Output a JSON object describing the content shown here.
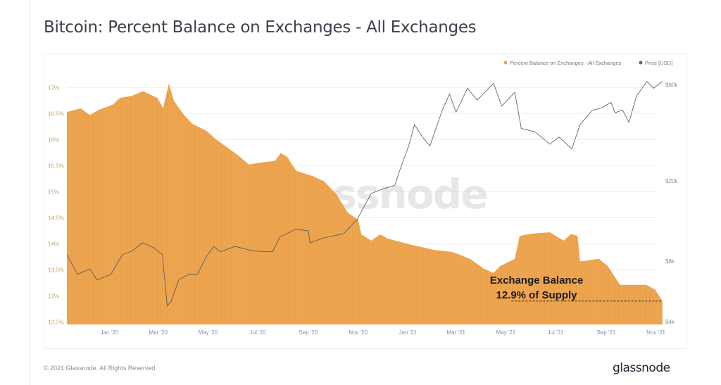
{
  "title": "Bitcoin: Percent Balance on Exchanges - All Exchanges",
  "footer": "© 2021 Glassnode. All Rights Reserved.",
  "logo": "glassnode",
  "watermark": "glassnode",
  "chart_data": {
    "type": "area",
    "title": "Bitcoin: Percent Balance on Exchanges - All Exchanges",
    "legend_position": "top-right",
    "grid": true,
    "xlim": [
      "2019-11-10",
      "2021-11-10"
    ],
    "x_ticks": [
      {
        "date": "2020-01-01",
        "label": "Jan '20"
      },
      {
        "date": "2020-03-01",
        "label": "Mar '20"
      },
      {
        "date": "2020-05-01",
        "label": "May '20"
      },
      {
        "date": "2020-07-01",
        "label": "Jul '20"
      },
      {
        "date": "2020-09-01",
        "label": "Sep '20"
      },
      {
        "date": "2020-11-01",
        "label": "Nov '20"
      },
      {
        "date": "2021-01-01",
        "label": "Jan '21"
      },
      {
        "date": "2021-03-01",
        "label": "Mar '21"
      },
      {
        "date": "2021-05-01",
        "label": "May '21"
      },
      {
        "date": "2021-07-01",
        "label": "Jul '21"
      },
      {
        "date": "2021-09-01",
        "label": "Sep '21"
      },
      {
        "date": "2021-11-01",
        "label": "Nov '21"
      }
    ],
    "y_left": {
      "scale": "linear",
      "ylim": [
        12.45,
        17.45
      ],
      "ticks": [
        {
          "value": 12.5,
          "label": "12.5%"
        },
        {
          "value": 13,
          "label": "13%"
        },
        {
          "value": 13.5,
          "label": "13.5%"
        },
        {
          "value": 14,
          "label": "14%"
        },
        {
          "value": 14.5,
          "label": "14.5%"
        },
        {
          "value": 15,
          "label": "15%"
        },
        {
          "value": 15.5,
          "label": "15.5%"
        },
        {
          "value": 16,
          "label": "16%"
        },
        {
          "value": 16.5,
          "label": "16.5%"
        },
        {
          "value": 17,
          "label": "17%"
        }
      ]
    },
    "y_right": {
      "scale": "log",
      "ylim": [
        3870,
        76000
      ],
      "ticks": [
        {
          "value": 4000,
          "label": "$4k"
        },
        {
          "value": 8000,
          "label": "$8k"
        },
        {
          "value": 20000,
          "label": "$20k"
        },
        {
          "value": 60000,
          "label": "$60k"
        }
      ]
    },
    "series": [
      {
        "name": "Percent Balance on Exchanges - All Exchanges",
        "axis": "left",
        "color": "#eda550",
        "type": "area",
        "points": [
          [
            "2019-11-10",
            16.53
          ],
          [
            "2019-11-27",
            16.6
          ],
          [
            "2019-12-08",
            16.47
          ],
          [
            "2019-12-19",
            16.57
          ],
          [
            "2020-01-05",
            16.67
          ],
          [
            "2020-01-14",
            16.8
          ],
          [
            "2020-01-29",
            16.84
          ],
          [
            "2020-02-11",
            16.93
          ],
          [
            "2020-02-29",
            16.8
          ],
          [
            "2020-03-07",
            16.6
          ],
          [
            "2020-03-14",
            17.08
          ],
          [
            "2020-03-20",
            16.75
          ],
          [
            "2020-04-01",
            16.48
          ],
          [
            "2020-04-12",
            16.3
          ],
          [
            "2020-04-29",
            16.17
          ],
          [
            "2020-05-11",
            16.0
          ],
          [
            "2020-05-29",
            15.8
          ],
          [
            "2020-06-09",
            15.67
          ],
          [
            "2020-06-20",
            15.52
          ],
          [
            "2020-07-05",
            15.56
          ],
          [
            "2020-07-22",
            15.59
          ],
          [
            "2020-07-29",
            15.74
          ],
          [
            "2020-08-06",
            15.67
          ],
          [
            "2020-08-17",
            15.4
          ],
          [
            "2020-09-06",
            15.3
          ],
          [
            "2020-09-20",
            15.2
          ],
          [
            "2020-10-05",
            14.96
          ],
          [
            "2020-10-19",
            14.6
          ],
          [
            "2020-11-01",
            14.46
          ],
          [
            "2020-11-05",
            14.18
          ],
          [
            "2020-11-17",
            14.06
          ],
          [
            "2020-11-28",
            14.18
          ],
          [
            "2020-12-07",
            14.1
          ],
          [
            "2021-01-05",
            13.98
          ],
          [
            "2021-02-03",
            13.88
          ],
          [
            "2021-02-25",
            13.84
          ],
          [
            "2021-03-18",
            13.71
          ],
          [
            "2021-04-04",
            13.52
          ],
          [
            "2021-04-16",
            13.44
          ],
          [
            "2021-04-24",
            13.57
          ],
          [
            "2021-05-12",
            13.71
          ],
          [
            "2021-05-18",
            14.15
          ],
          [
            "2021-05-31",
            14.19
          ],
          [
            "2021-06-24",
            14.22
          ],
          [
            "2021-07-11",
            14.06
          ],
          [
            "2021-07-20",
            14.19
          ],
          [
            "2021-07-28",
            14.15
          ],
          [
            "2021-07-31",
            13.66
          ],
          [
            "2021-08-23",
            13.71
          ],
          [
            "2021-09-03",
            13.57
          ],
          [
            "2021-09-18",
            13.21
          ],
          [
            "2021-10-20",
            13.21
          ],
          [
            "2021-10-31",
            13.12
          ],
          [
            "2021-11-09",
            12.9
          ]
        ]
      },
      {
        "name": "Price [USD]",
        "axis": "right",
        "color": "#555555",
        "type": "line",
        "points": [
          [
            "2019-11-10",
            8600
          ],
          [
            "2019-11-23",
            6870
          ],
          [
            "2019-12-08",
            7290
          ],
          [
            "2019-12-17",
            6430
          ],
          [
            "2020-01-03",
            6870
          ],
          [
            "2020-01-17",
            8600
          ],
          [
            "2020-01-29",
            8960
          ],
          [
            "2020-02-11",
            9850
          ],
          [
            "2020-02-24",
            9330
          ],
          [
            "2020-03-06",
            8600
          ],
          [
            "2020-03-12",
            4780
          ],
          [
            "2020-03-17",
            5060
          ],
          [
            "2020-03-26",
            6430
          ],
          [
            "2020-04-07",
            6870
          ],
          [
            "2020-04-18",
            6870
          ],
          [
            "2020-04-29",
            8400
          ],
          [
            "2020-05-08",
            9450
          ],
          [
            "2020-05-16",
            8880
          ],
          [
            "2020-06-03",
            9450
          ],
          [
            "2020-06-26",
            8960
          ],
          [
            "2020-07-19",
            8880
          ],
          [
            "2020-07-28",
            10520
          ],
          [
            "2020-08-17",
            11500
          ],
          [
            "2020-09-01",
            11280
          ],
          [
            "2020-09-03",
            9850
          ],
          [
            "2020-09-20",
            10420
          ],
          [
            "2020-10-14",
            10900
          ],
          [
            "2020-10-31",
            12900
          ],
          [
            "2020-11-17",
            17300
          ],
          [
            "2020-12-01",
            18200
          ],
          [
            "2020-12-16",
            19000
          ],
          [
            "2020-12-22",
            22500
          ],
          [
            "2021-01-02",
            29800
          ],
          [
            "2021-01-09",
            38000
          ],
          [
            "2021-01-19",
            33000
          ],
          [
            "2021-01-28",
            29800
          ],
          [
            "2021-02-12",
            44700
          ],
          [
            "2021-02-21",
            54000
          ],
          [
            "2021-03-01",
            43900
          ],
          [
            "2021-03-15",
            57600
          ],
          [
            "2021-03-27",
            50300
          ],
          [
            "2021-04-16",
            61000
          ],
          [
            "2021-04-26",
            47000
          ],
          [
            "2021-05-12",
            55000
          ],
          [
            "2021-05-20",
            36400
          ],
          [
            "2021-06-06",
            35000
          ],
          [
            "2021-06-24",
            30400
          ],
          [
            "2021-07-05",
            33000
          ],
          [
            "2021-07-21",
            28800
          ],
          [
            "2021-07-31",
            38000
          ],
          [
            "2021-08-15",
            44800
          ],
          [
            "2021-08-26",
            46000
          ],
          [
            "2021-09-07",
            49000
          ],
          [
            "2021-09-12",
            43500
          ],
          [
            "2021-09-21",
            45000
          ],
          [
            "2021-09-29",
            39000
          ],
          [
            "2021-10-08",
            52500
          ],
          [
            "2021-10-21",
            62400
          ],
          [
            "2021-10-29",
            57600
          ],
          [
            "2021-11-09",
            62400
          ]
        ]
      }
    ],
    "annotations": [
      {
        "line1": "Exchange Balance",
        "line2": "12.9% of Supply",
        "reference_value": 12.9,
        "reference_from": "2021-05-01",
        "reference_to": "2021-11-09",
        "style": "dashed"
      }
    ]
  }
}
